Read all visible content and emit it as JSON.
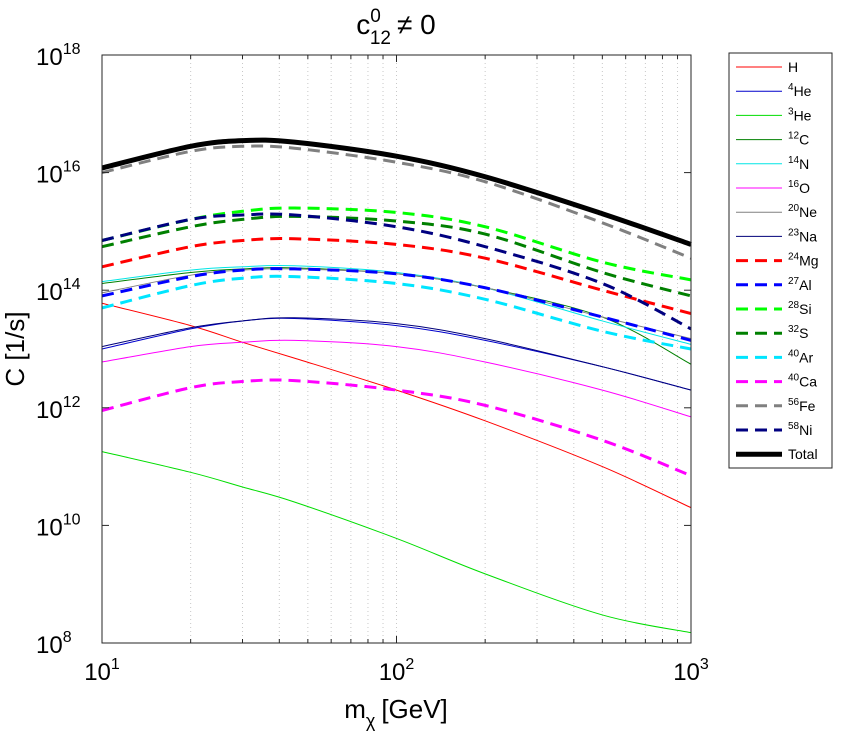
{
  "chart_data": {
    "type": "line",
    "title": "c",
    "title_sup": "0",
    "title_sub": "12",
    "title_tail": "≠ 0",
    "xlabel": "m",
    "xlabel_sub": "χ",
    "xlabel_unit": "[GeV]",
    "ylabel": "C [1/s]",
    "xscale": "log",
    "yscale": "log",
    "xlim": [
      10,
      1000
    ],
    "ylim": [
      100000000.0,
      1e+18
    ],
    "grid": "x-only-dotted",
    "legend_placement": "outside-right",
    "x_ticks": [
      {
        "base": "10",
        "exp": "1"
      },
      {
        "base": "10",
        "exp": "2"
      },
      {
        "base": "10",
        "exp": "3"
      }
    ],
    "y_ticks": [
      {
        "base": "10",
        "exp": "8"
      },
      {
        "base": "10",
        "exp": "10"
      },
      {
        "base": "10",
        "exp": "12"
      },
      {
        "base": "10",
        "exp": "14"
      },
      {
        "base": "10",
        "exp": "16"
      },
      {
        "base": "10",
        "exp": "18"
      }
    ],
    "x": [
      10,
      20,
      30,
      45,
      100,
      200,
      500,
      1000
    ],
    "series": [
      {
        "name": "H",
        "mass": "",
        "color": "#ff0000",
        "dash": false,
        "bold": false,
        "values": [
          60000000000000.0,
          25000000000000.0,
          13000000000000.0,
          7000000000000.0,
          2000000000000.0,
          600000000000.0,
          100000000000.0,
          20000000000.0
        ]
      },
      {
        "name": "He",
        "mass": "4",
        "color": "#0000cc",
        "dash": false,
        "bold": false,
        "values": [
          10000000000000.0,
          22000000000000.0,
          30000000000000.0,
          33000000000000.0,
          25000000000000.0,
          14000000000000.0,
          5000000000000.0,
          2000000000000.0
        ]
      },
      {
        "name": "He",
        "mass": "3",
        "color": "#00dd00",
        "dash": false,
        "bold": false,
        "values": [
          180000000000.0,
          80000000000.0,
          45000000000.0,
          25000000000.0,
          6000000000.0,
          1500000000.0,
          300000000.0,
          150000000.0
        ]
      },
      {
        "name": "C",
        "mass": "12",
        "color": "#008000",
        "dash": false,
        "bold": false,
        "values": [
          130000000000000.0,
          200000000000000.0,
          230000000000000.0,
          240000000000000.0,
          190000000000000.0,
          110000000000000.0,
          35000000000000.0,
          5500000000000.0
        ]
      },
      {
        "name": "N",
        "mass": "14",
        "color": "#00e5e5",
        "dash": false,
        "bold": false,
        "values": [
          140000000000000.0,
          220000000000000.0,
          250000000000000.0,
          260000000000000.0,
          200000000000000.0,
          110000000000000.0,
          30000000000000.0,
          12000000000000.0
        ]
      },
      {
        "name": "O",
        "mass": "16",
        "color": "#ff00ff",
        "dash": false,
        "bold": false,
        "values": [
          6000000000000.0,
          11000000000000.0,
          13000000000000.0,
          14000000000000.0,
          11000000000000.0,
          6000000000000.0,
          2000000000000.0,
          700000000000.0
        ]
      },
      {
        "name": "Ne",
        "mass": "20",
        "color": "#808080",
        "dash": false,
        "bold": false,
        "values": [
          90000000000000.0,
          180000000000000.0,
          220000000000000.0,
          230000000000000.0,
          190000000000000.0,
          110000000000000.0,
          35000000000000.0,
          15000000000000.0
        ]
      },
      {
        "name": "Na",
        "mass": "23",
        "color": "#00007a",
        "dash": false,
        "bold": false,
        "values": [
          11000000000000.0,
          23000000000000.0,
          30000000000000.0,
          34000000000000.0,
          27000000000000.0,
          15000000000000.0,
          5000000000000.0,
          2000000000000.0
        ]
      },
      {
        "name": "Mg",
        "mass": "24",
        "color": "#ff0000",
        "dash": true,
        "bold": false,
        "values": [
          250000000000000.0,
          550000000000000.0,
          700000000000000.0,
          750000000000000.0,
          600000000000000.0,
          350000000000000.0,
          100000000000000.0,
          40000000000000.0
        ]
      },
      {
        "name": "Al",
        "mass": "27",
        "color": "#0000ff",
        "dash": true,
        "bold": false,
        "values": [
          80000000000000.0,
          170000000000000.0,
          220000000000000.0,
          230000000000000.0,
          190000000000000.0,
          110000000000000.0,
          35000000000000.0,
          14000000000000.0
        ]
      },
      {
        "name": "Si",
        "mass": "28",
        "color": "#00ff00",
        "dash": true,
        "bold": false,
        "values": [
          700000000000000.0,
          1600000000000000.0,
          2200000000000000.0,
          2500000000000000.0,
          2100000000000000.0,
          1200000000000000.0,
          300000000000000.0,
          150000000000000.0
        ]
      },
      {
        "name": "S",
        "mass": "32",
        "color": "#008000",
        "dash": true,
        "bold": false,
        "values": [
          550000000000000.0,
          1200000000000000.0,
          1600000000000000.0,
          1800000000000000.0,
          1500000000000000.0,
          900000000000000.0,
          200000000000000.0,
          80000000000000.0
        ]
      },
      {
        "name": "Ar",
        "mass": "40",
        "color": "#00e5ff",
        "dash": true,
        "bold": false,
        "values": [
          50000000000000.0,
          120000000000000.0,
          160000000000000.0,
          170000000000000.0,
          130000000000000.0,
          70000000000000.0,
          20000000000000.0,
          10000000000000.0
        ]
      },
      {
        "name": "Ca",
        "mass": "40",
        "color": "#ff00ff",
        "dash": true,
        "bold": false,
        "values": [
          900000000000.0,
          2200000000000.0,
          2800000000000.0,
          2900000000000.0,
          2000000000000.0,
          1100000000000.0,
          280000000000.0,
          70000000000.0
        ]
      },
      {
        "name": "Fe",
        "mass": "56",
        "color": "#808080",
        "dash": true,
        "bold": false,
        "values": [
          1e+16,
          2.3e+16,
          2.8e+16,
          2.6e+16,
          1.5e+16,
          7000000000000000.0,
          1400000000000000.0,
          350000000000000.0
        ]
      },
      {
        "name": "Ni",
        "mass": "58",
        "color": "#000080",
        "dash": true,
        "bold": false,
        "values": [
          700000000000000.0,
          1600000000000000.0,
          1900000000000000.0,
          1900000000000000.0,
          1200000000000000.0,
          550000000000000.0,
          130000000000000.0,
          22000000000000.0
        ]
      },
      {
        "name": "Total",
        "mass": "",
        "color": "#000000",
        "dash": false,
        "bold": true,
        "values": [
          1.2e+16,
          2.8e+16,
          3.5e+16,
          3.3e+16,
          1.9e+16,
          8500000000000000.0,
          2000000000000000.0,
          600000000000000.0
        ]
      }
    ]
  }
}
